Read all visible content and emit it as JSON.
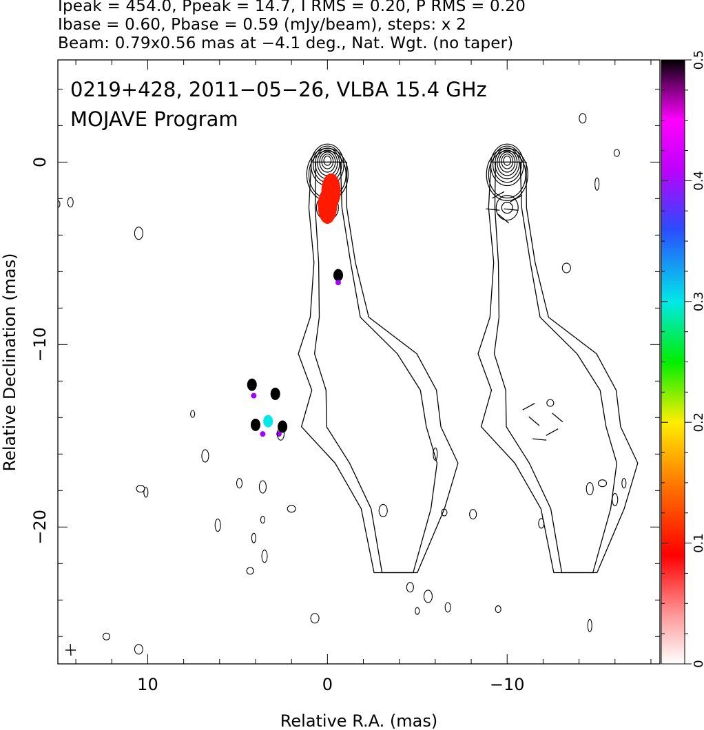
{
  "header": {
    "line1": "Ipeak = 454.0, Ppeak = 14.7, I RMS = 0.20, P RMS = 0.20",
    "line2": "Ibase = 0.60, Pbase = 0.59 (mJy/beam), steps: x 2",
    "line3": "Beam: 0.79x0.56 mas at −4.1 deg., Nat. Wgt. (no taper)"
  },
  "labels": {
    "source": "0219+428, 2011−05−26, VLBA 15.4 GHz",
    "program": "MOJAVE Program"
  },
  "chart_data": {
    "type": "contour-map",
    "xlabel": "Relative R.A. (mas)",
    "ylabel": "Relative Declination (mas)",
    "xlim": [
      15,
      -18.5
    ],
    "ylim": [
      -27.5,
      5.6
    ],
    "xticks": [
      10,
      0,
      -10
    ],
    "xtick_labels": [
      "10",
      "0",
      "−10"
    ],
    "yticks": [
      0,
      -10,
      -20
    ],
    "ytick_labels": [
      "0",
      "−10",
      "−20"
    ],
    "colorbar": {
      "range": [
        0,
        0.5
      ],
      "ticks": [
        0,
        0.1,
        0.2,
        0.3,
        0.4,
        0.5
      ],
      "tick_labels": [
        "0",
        "0.1",
        "0.2",
        "0.3",
        "0.4",
        "0.5"
      ],
      "orientation": "vertical"
    },
    "panels": [
      {
        "offset_x": 0,
        "content": "total intensity contours with fractional polarization colour"
      },
      {
        "offset_x": -10,
        "content": "total intensity contours with polarization vectors"
      }
    ],
    "core": {
      "x": 0,
      "y": 0,
      "peak_mJy_per_beam": 454.0
    },
    "jet_ridge": [
      [
        0,
        0
      ],
      [
        -0.1,
        -2.5
      ],
      [
        -0.4,
        -5.5
      ],
      [
        -0.7,
        -8.5
      ],
      [
        -1.5,
        -10.5
      ],
      [
        -2.5,
        -12.5
      ],
      [
        -3,
        -14.5
      ],
      [
        -3.5,
        -16.5
      ],
      [
        -4,
        -19
      ],
      [
        -4,
        -22.5
      ]
    ],
    "contour_steps": "x 2",
    "pol_colour_spots": [
      {
        "x": -0.2,
        "y": -1.6,
        "frac_pol": 0.1
      },
      {
        "x": 0,
        "y": -2.4,
        "frac_pol": 0.1
      },
      {
        "x": -0.6,
        "y": -6.2,
        "frac_pol": 0.5
      },
      {
        "x": 4.2,
        "y": -12.2,
        "frac_pol": 0.5
      },
      {
        "x": 2.9,
        "y": -12.7,
        "frac_pol": 0.5
      },
      {
        "x": 4.0,
        "y": -14.4,
        "frac_pol": 0.5
      },
      {
        "x": 2.5,
        "y": -14.5,
        "frac_pol": 0.5
      },
      {
        "x": 3.3,
        "y": -14.2,
        "frac_pol": 0.3
      }
    ]
  }
}
